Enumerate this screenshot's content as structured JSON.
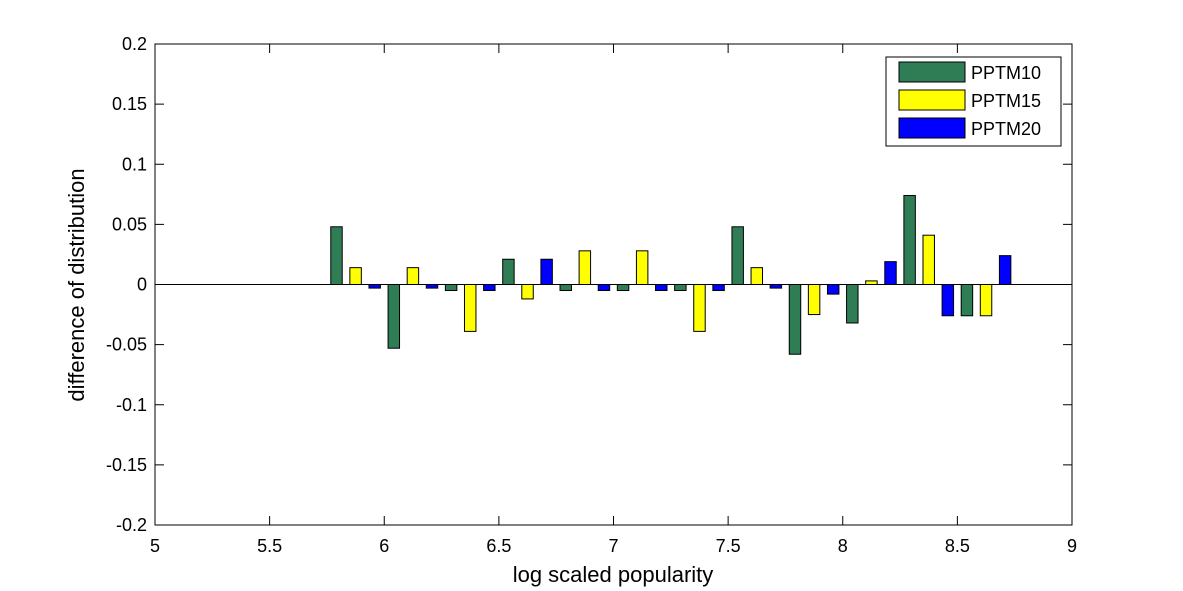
{
  "chart_data": {
    "type": "bar",
    "title": "",
    "xlabel": "log scaled popularity",
    "ylabel": "difference of distribution",
    "xlim": [
      5,
      9
    ],
    "ylim": [
      -0.2,
      0.2
    ],
    "xticks": [
      "5",
      "5.5",
      "6",
      "6.5",
      "7",
      "7.5",
      "8",
      "8.5",
      "9"
    ],
    "yticks": [
      "-0.2",
      "-0.15",
      "-0.1",
      "-0.05",
      "0",
      "0.05",
      "0.1",
      "0.15",
      "0.2"
    ],
    "grid": false,
    "legend_position": "top-right",
    "x": [
      5.875,
      6.125,
      6.375,
      6.625,
      6.875,
      7.125,
      7.375,
      7.625,
      7.875,
      8.125,
      8.375,
      8.625
    ],
    "series": [
      {
        "name": "PPTM10",
        "color": "#2e7d54",
        "values": [
          0.048,
          -0.053,
          -0.005,
          0.021,
          -0.005,
          -0.005,
          -0.005,
          0.048,
          -0.058,
          -0.032,
          0.074,
          -0.026
        ]
      },
      {
        "name": "PPTM15",
        "color": "#ffff00",
        "values": [
          0.014,
          0.014,
          -0.039,
          -0.012,
          0.028,
          0.028,
          -0.039,
          0.014,
          -0.025,
          0.003,
          0.041,
          -0.026
        ]
      },
      {
        "name": "PPTM20",
        "color": "#0000ff",
        "values": [
          -0.003,
          -0.003,
          -0.005,
          0.021,
          -0.005,
          -0.005,
          -0.005,
          -0.003,
          -0.008,
          0.019,
          -0.026,
          0.024
        ]
      }
    ]
  }
}
